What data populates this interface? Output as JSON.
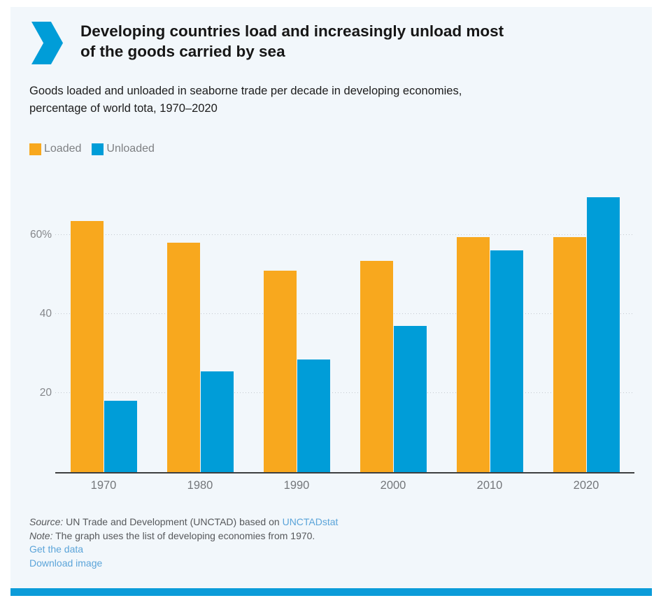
{
  "header": {
    "title_lines": [
      "Developing countries load and increasingly unload most",
      "of the goods carried by sea"
    ],
    "subtitle_lines": [
      "Goods loaded and unloaded in seaborne trade per decade in developing economies,",
      "percentage of world tota, 1970–2020"
    ]
  },
  "chart_data": {
    "type": "bar",
    "title": "Developing countries load and increasingly unload most of the goods carried by sea",
    "subtitle": "Goods loaded and unloaded in seaborne trade per decade in developing economies, percentage of world tota, 1970–2020",
    "categories": [
      "1970",
      "1980",
      "1990",
      "2000",
      "2010",
      "2020"
    ],
    "series": [
      {
        "name": "Loaded",
        "color": "#F8A81E",
        "values": [
          63.5,
          58,
          51,
          53.5,
          59.5,
          59.5
        ]
      },
      {
        "name": "Unloaded",
        "color": "#009DD8",
        "values": [
          18,
          25.5,
          28.5,
          37,
          56,
          69.5
        ]
      }
    ],
    "unit": "%",
    "yticks": [
      20,
      40,
      60
    ],
    "ytick_labels": [
      "20",
      "40",
      "60%"
    ],
    "ylim": [
      0,
      72
    ],
    "grid": "horizontal-dotted",
    "legend_position": "top-left"
  },
  "footer": {
    "source_label": "Source:",
    "source_text": " UN Trade and Development (UNCTAD) based on ",
    "source_link": "UNCTADstat",
    "note_label": "Note:",
    "note_text": " The graph uses the list of developing economies from 1970.",
    "get_data_link": "Get the data",
    "download_link": "Download image"
  },
  "colors": {
    "card_background": "#F2F7FB",
    "loaded_bar": "#F8A81E",
    "unloaded_bar": "#009DD8",
    "accent_bar": "#0C9CD9",
    "link": "#5BA4D9"
  }
}
